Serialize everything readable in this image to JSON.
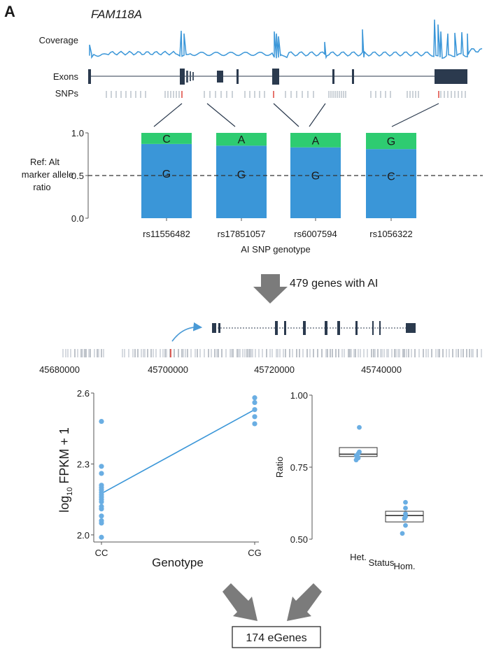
{
  "panel_label": "A",
  "gene_name": "FAM118A",
  "track_labels": {
    "coverage": "Coverage",
    "exons": "Exons",
    "snps": "SNPs"
  },
  "arrow_caption": "479 genes with AI",
  "egenes_label": "174 eGenes",
  "colors": {
    "blue": "#3a96d8",
    "green": "#2ecc71",
    "exon": "#2b3a4e",
    "snp_highlight": "#e0524a",
    "arrow": "#7b7b7b"
  },
  "chart_data": [
    {
      "type": "bar",
      "title": "",
      "ylabel": "Ref: Alt marker allele ratio",
      "xlabel": "AI SNP genotype",
      "categories": [
        "rs11556482",
        "rs17851057",
        "rs6007594",
        "rs1056322"
      ],
      "ylim": [
        0,
        1
      ],
      "yticks": [
        "0.0",
        "0.5",
        "1.0"
      ],
      "reference_line": 0.5,
      "series": [
        {
          "values": [
            0.87,
            0.85,
            0.83,
            0.81
          ],
          "allele_labels": [
            "G",
            "G",
            "G",
            "C"
          ]
        },
        {
          "values": [
            0.13,
            0.15,
            0.17,
            0.19
          ],
          "allele_labels": [
            "C",
            "A",
            "A",
            "G"
          ]
        }
      ]
    },
    {
      "type": "scatter",
      "title": "",
      "xlabel": "Genotype",
      "ylabel_main": "log",
      "ylabel_sub": "10",
      "ylabel_rest": " FPKM + 1",
      "categories": [
        "CC",
        "CG"
      ],
      "ylim": [
        1.97,
        2.6
      ],
      "yticks": [
        {
          "v": 2.0,
          "t": "2.0"
        },
        {
          "v": 2.3,
          "t": "2.3"
        },
        {
          "v": 2.6,
          "t": "2.6"
        }
      ],
      "points": {
        "CC": [
          2.48,
          2.29,
          2.26,
          2.21,
          2.2,
          2.19,
          2.18,
          2.17,
          2.16,
          2.15,
          2.14,
          2.12,
          2.11,
          2.08,
          2.06,
          2.05,
          1.99
        ],
        "CG": [
          2.58,
          2.56,
          2.53,
          2.5,
          2.47
        ]
      },
      "trend": [
        2.175,
        2.53
      ]
    },
    {
      "type": "box",
      "title": "",
      "xlabel": "Status",
      "ylabel": "Ratio",
      "categories": [
        "Het.",
        "Hom."
      ],
      "ylim": [
        0.5,
        1.0
      ],
      "yticks": [
        {
          "v": 0.5,
          "t": "0.50"
        },
        {
          "v": 0.75,
          "t": "0.75"
        },
        {
          "v": 1.0,
          "t": "1.00"
        }
      ],
      "boxes": [
        {
          "q1": 0.787,
          "median": 0.795,
          "q3": 0.818,
          "points": [
            0.888,
            0.803,
            0.797,
            0.79,
            0.782,
            0.775
          ]
        },
        {
          "q1": 0.56,
          "median": 0.582,
          "q3": 0.597,
          "points": [
            0.628,
            0.608,
            0.588,
            0.578,
            0.572,
            0.548,
            0.52
          ]
        }
      ]
    }
  ],
  "genome_axis": {
    "ticks": [
      "45680000",
      "45700000",
      "45720000",
      "45740000"
    ]
  }
}
